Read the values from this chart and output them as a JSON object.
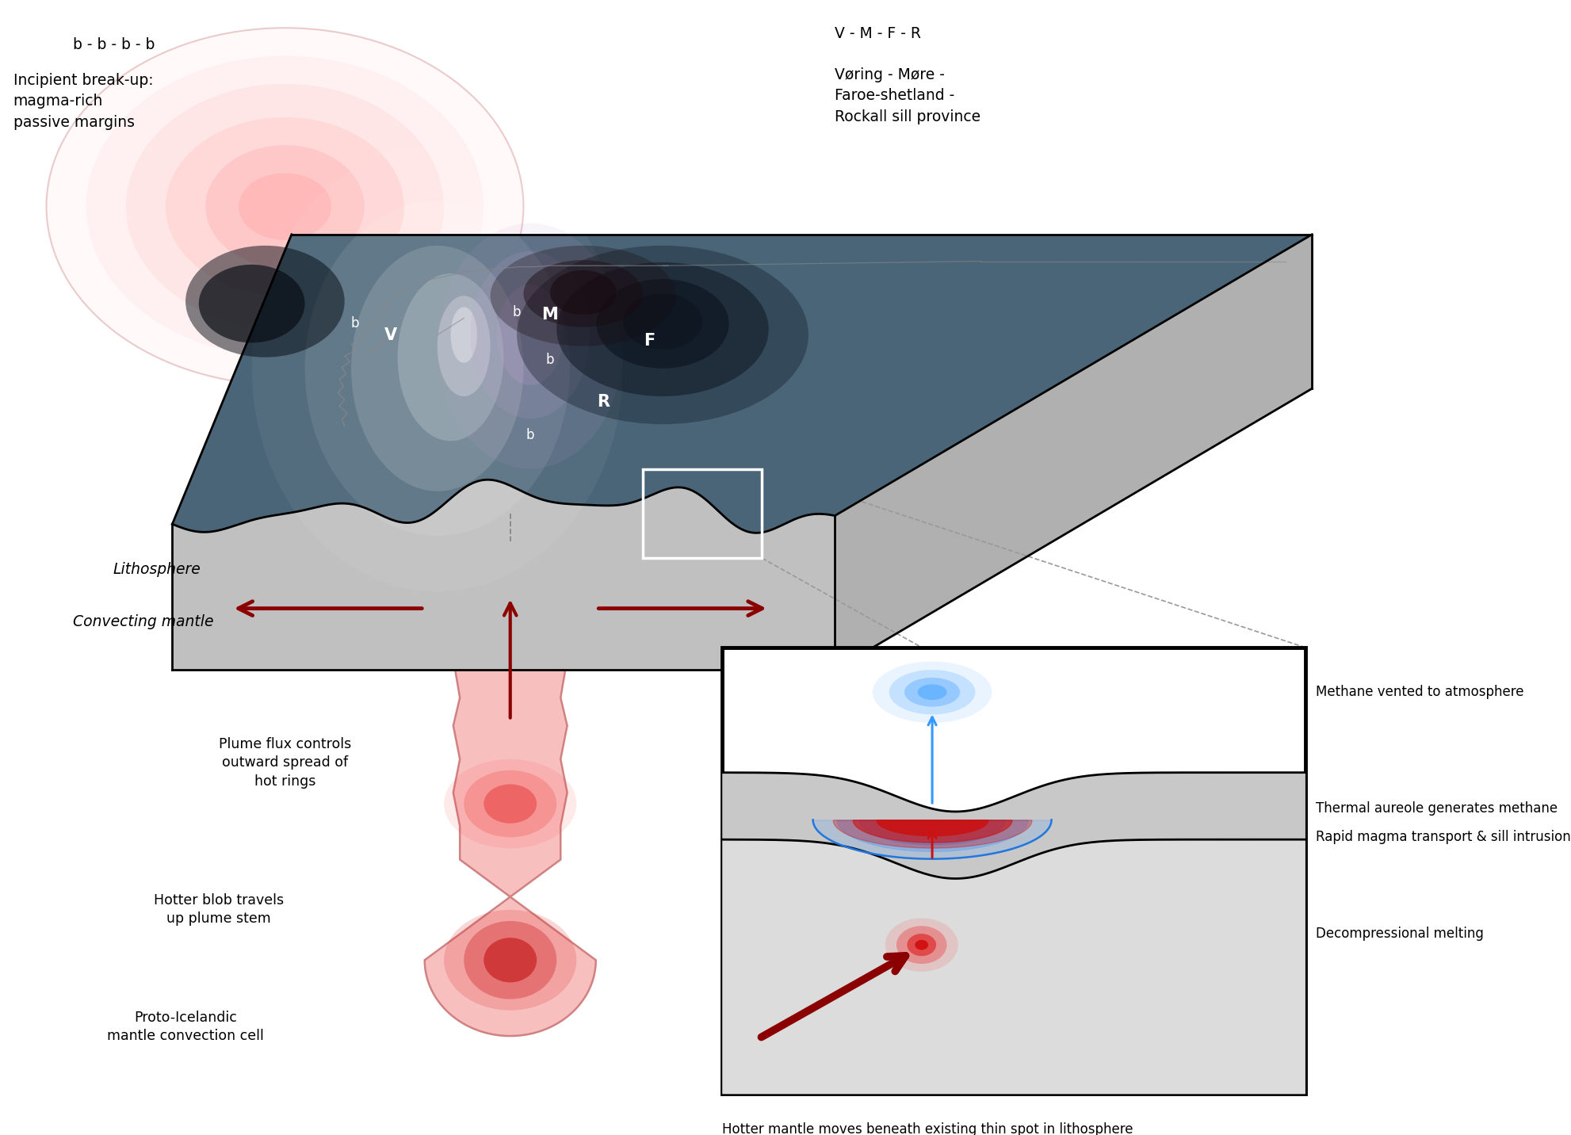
{
  "fig_width": 19.83,
  "fig_height": 14.32,
  "annotations": {
    "bbbb": "b - b - b - b",
    "incipient": "Incipient break-up:\nmagma-rich\npassive margins",
    "vmfr_title": "V - M - F - R",
    "vmfr_body": "Vøring - Møre -\nFaroe-shetland -\nRockall sill province",
    "lithosphere": "Lithosphere",
    "convecting": "Convecting mantle",
    "plume_flux": "Plume flux controls\noutward spread of\nhot rings",
    "blob": "Hotter blob travels\nup plume stem",
    "proto": "Proto-Icelandic\nmantle convection cell",
    "methane_vent": "Methane vented to atmosphere",
    "thermal": "Thermal aureole generates methane",
    "rapid": "Rapid magma transport & sill intrusion",
    "decompression": "Decompressional melting",
    "hotter_mantle": "Hotter mantle moves beneath existing thin spot in lithosphere"
  }
}
